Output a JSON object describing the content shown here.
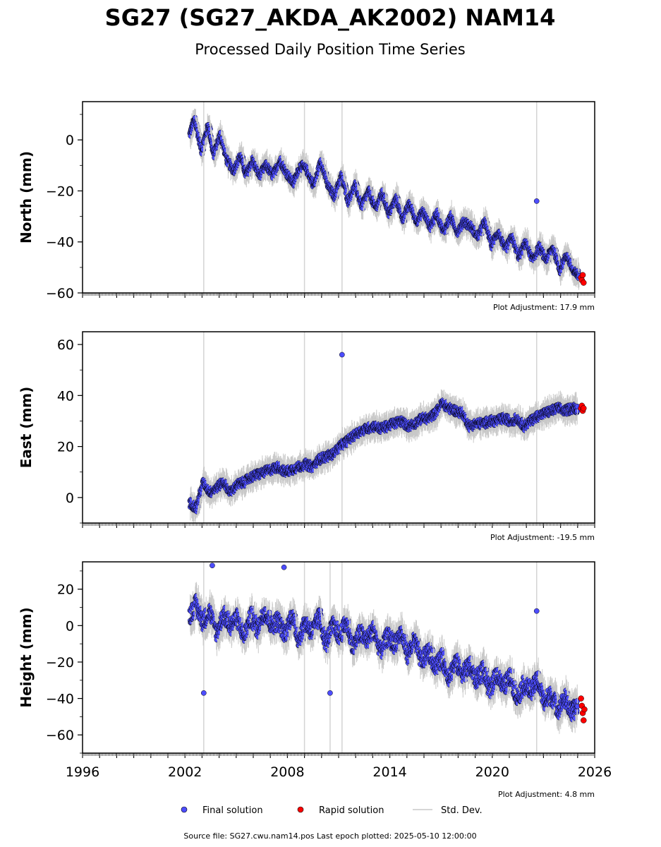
{
  "title": "SG27 (SG27_AKDA_AK2002) NAM14",
  "subtitle": "Processed Daily Position Time Series",
  "source_line": "Source file: SG27.cwu.nam14.pos  Last epoch plotted: 2025-05-10 12:00:00",
  "legend": {
    "final": "Final solution",
    "rapid": "Rapid solution",
    "std": "Std. Dev."
  },
  "colors": {
    "final": "#4d4dff",
    "rapid": "#ff0000",
    "marker_edge": "#000000",
    "std": "#c8c8c8",
    "event_line": "#d3d3d3"
  },
  "chart_data": [
    {
      "type": "scatter",
      "panel": "north",
      "ylabel": "North (mm)",
      "plot_adjustment": "Plot Adjustment: 17.9 mm",
      "xlim": [
        1996,
        2026
      ],
      "ylim": [
        -60,
        15
      ],
      "yticks": [
        0,
        -20,
        -40,
        -60
      ],
      "ytick_labels": [
        "0",
        "−20",
        "−40",
        "−60"
      ],
      "event_lines": [
        2003.1,
        2009.0,
        2011.2,
        2022.6
      ],
      "series": [
        {
          "kind": "final",
          "x": [
            2002.3,
            2002.6,
            2003.0,
            2003.4,
            2003.7,
            2004.1,
            2004.5,
            2004.9,
            2005.3,
            2005.6,
            2006.0,
            2006.4,
            2006.8,
            2007.2,
            2007.6,
            2008.0,
            2008.4,
            2008.8,
            2009.2,
            2009.6,
            2010.0,
            2010.4,
            2010.8,
            2011.2,
            2011.6,
            2012.0,
            2012.4,
            2012.8,
            2013.2,
            2013.6,
            2014.0,
            2014.4,
            2014.8,
            2015.2,
            2015.6,
            2016.0,
            2016.4,
            2016.8,
            2017.2,
            2017.6,
            2018.0,
            2018.4,
            2018.8,
            2019.2,
            2019.6,
            2020.0,
            2020.4,
            2020.8,
            2021.2,
            2021.6,
            2022.0,
            2022.4,
            2022.8,
            2023.2,
            2023.6,
            2024.0,
            2024.4,
            2024.8,
            2025.1
          ],
          "y": [
            2,
            8,
            -4,
            6,
            -6,
            2,
            -8,
            -12,
            -6,
            -14,
            -8,
            -14,
            -10,
            -14,
            -8,
            -13,
            -17,
            -10,
            -12,
            -18,
            -8,
            -18,
            -22,
            -14,
            -24,
            -18,
            -26,
            -20,
            -27,
            -21,
            -29,
            -23,
            -31,
            -25,
            -32,
            -28,
            -34,
            -29,
            -36,
            -30,
            -36,
            -32,
            -34,
            -38,
            -32,
            -41,
            -36,
            -43,
            -38,
            -46,
            -40,
            -47,
            -42,
            -47,
            -42,
            -51,
            -45,
            -52,
            -53
          ]
        },
        {
          "kind": "outlier",
          "x": [
            2022.6
          ],
          "y": [
            -24
          ]
        },
        {
          "kind": "rapid",
          "x": [
            2025.2,
            2025.25,
            2025.3,
            2025.35
          ],
          "y": [
            -54,
            -55,
            -53,
            -56
          ]
        }
      ]
    },
    {
      "type": "scatter",
      "panel": "east",
      "ylabel": "East (mm)",
      "plot_adjustment": "Plot Adjustment: -19.5 mm",
      "xlim": [
        1996,
        2026
      ],
      "ylim": [
        -10,
        65
      ],
      "yticks": [
        0,
        20,
        40,
        60
      ],
      "ytick_labels": [
        "0",
        "20",
        "40",
        "60"
      ],
      "event_lines": [
        2003.1,
        2009.0,
        2011.2,
        2022.6
      ],
      "series": [
        {
          "kind": "final",
          "x": [
            2002.3,
            2002.7,
            2003.1,
            2003.5,
            2003.9,
            2004.3,
            2004.7,
            2005.1,
            2005.5,
            2005.9,
            2006.3,
            2006.7,
            2007.1,
            2007.5,
            2007.9,
            2008.3,
            2008.7,
            2009.1,
            2009.5,
            2009.9,
            2010.3,
            2010.7,
            2011.1,
            2011.5,
            2011.9,
            2012.3,
            2012.7,
            2013.1,
            2013.5,
            2013.9,
            2014.3,
            2014.7,
            2015.1,
            2015.5,
            2015.9,
            2016.3,
            2016.7,
            2017.1,
            2017.5,
            2017.9,
            2018.3,
            2018.7,
            2019.1,
            2019.5,
            2019.9,
            2020.3,
            2020.7,
            2021.1,
            2021.5,
            2021.9,
            2022.3,
            2022.7,
            2023.1,
            2023.5,
            2023.9,
            2024.3,
            2024.7,
            2025.0
          ],
          "y": [
            -2,
            -4,
            6,
            2,
            4,
            6,
            2,
            5,
            6,
            8,
            9,
            10,
            11,
            12,
            10,
            11,
            12,
            13,
            12,
            15,
            16,
            17,
            20,
            22,
            24,
            26,
            27,
            28,
            27,
            28,
            29,
            30,
            28,
            29,
            31,
            31,
            33,
            37,
            35,
            34,
            33,
            28,
            29,
            29,
            30,
            30,
            31,
            30,
            31,
            28,
            30,
            32,
            33,
            34,
            35,
            34,
            35,
            35
          ]
        },
        {
          "kind": "outlier",
          "x": [
            2011.2
          ],
          "y": [
            56
          ]
        },
        {
          "kind": "rapid",
          "x": [
            2025.2,
            2025.25,
            2025.3,
            2025.35
          ],
          "y": [
            35,
            36,
            34,
            35
          ]
        }
      ]
    },
    {
      "type": "scatter",
      "panel": "height",
      "ylabel": "Height (mm)",
      "plot_adjustment": "Plot Adjustment: 4.8 mm",
      "xlim": [
        1996,
        2026
      ],
      "ylim": [
        -70,
        35
      ],
      "yticks": [
        20,
        0,
        -20,
        -40,
        -60
      ],
      "ytick_labels": [
        "20",
        "0",
        "−20",
        "−40",
        "−60"
      ],
      "xticks": [
        1996,
        2002,
        2008,
        2014,
        2020,
        2026
      ],
      "xtick_labels": [
        "1996",
        "2002",
        "2008",
        "2014",
        "2020",
        "2026"
      ],
      "event_lines": [
        2003.1,
        2009.0,
        2010.5,
        2011.2,
        2022.6
      ],
      "series": [
        {
          "kind": "final",
          "x": [
            2002.3,
            2002.7,
            2003.1,
            2003.5,
            2003.9,
            2004.3,
            2004.7,
            2005.1,
            2005.5,
            2005.9,
            2006.3,
            2006.7,
            2007.1,
            2007.5,
            2007.9,
            2008.3,
            2008.7,
            2009.1,
            2009.5,
            2009.9,
            2010.3,
            2010.7,
            2011.1,
            2011.5,
            2011.9,
            2012.3,
            2012.7,
            2013.1,
            2013.5,
            2013.9,
            2014.3,
            2014.7,
            2015.1,
            2015.5,
            2015.9,
            2016.3,
            2016.7,
            2017.1,
            2017.5,
            2017.9,
            2018.3,
            2018.7,
            2019.1,
            2019.5,
            2019.9,
            2020.3,
            2020.7,
            2021.1,
            2021.5,
            2021.9,
            2022.3,
            2022.7,
            2023.1,
            2023.5,
            2023.9,
            2024.3,
            2024.7,
            2025.0
          ],
          "y": [
            5,
            12,
            2,
            8,
            -4,
            6,
            0,
            4,
            -6,
            5,
            -2,
            8,
            0,
            3,
            -5,
            6,
            -8,
            2,
            -4,
            5,
            -10,
            0,
            -6,
            2,
            -12,
            -4,
            -8,
            -2,
            -14,
            -6,
            -10,
            -4,
            -16,
            -8,
            -20,
            -14,
            -22,
            -18,
            -28,
            -20,
            -26,
            -22,
            -30,
            -24,
            -36,
            -26,
            -34,
            -28,
            -40,
            -32,
            -36,
            -30,
            -42,
            -38,
            -46,
            -40,
            -48,
            -44
          ]
        },
        {
          "kind": "outlier",
          "x": [
            2003.1,
            2010.5,
            2022.6,
            2003.6,
            2007.8
          ],
          "y": [
            -37,
            -37,
            8,
            33,
            32
          ]
        },
        {
          "kind": "rapid",
          "x": [
            2025.2,
            2025.25,
            2025.3,
            2025.35,
            2025.4
          ],
          "y": [
            -40,
            -44,
            -48,
            -52,
            -46
          ]
        }
      ]
    }
  ]
}
